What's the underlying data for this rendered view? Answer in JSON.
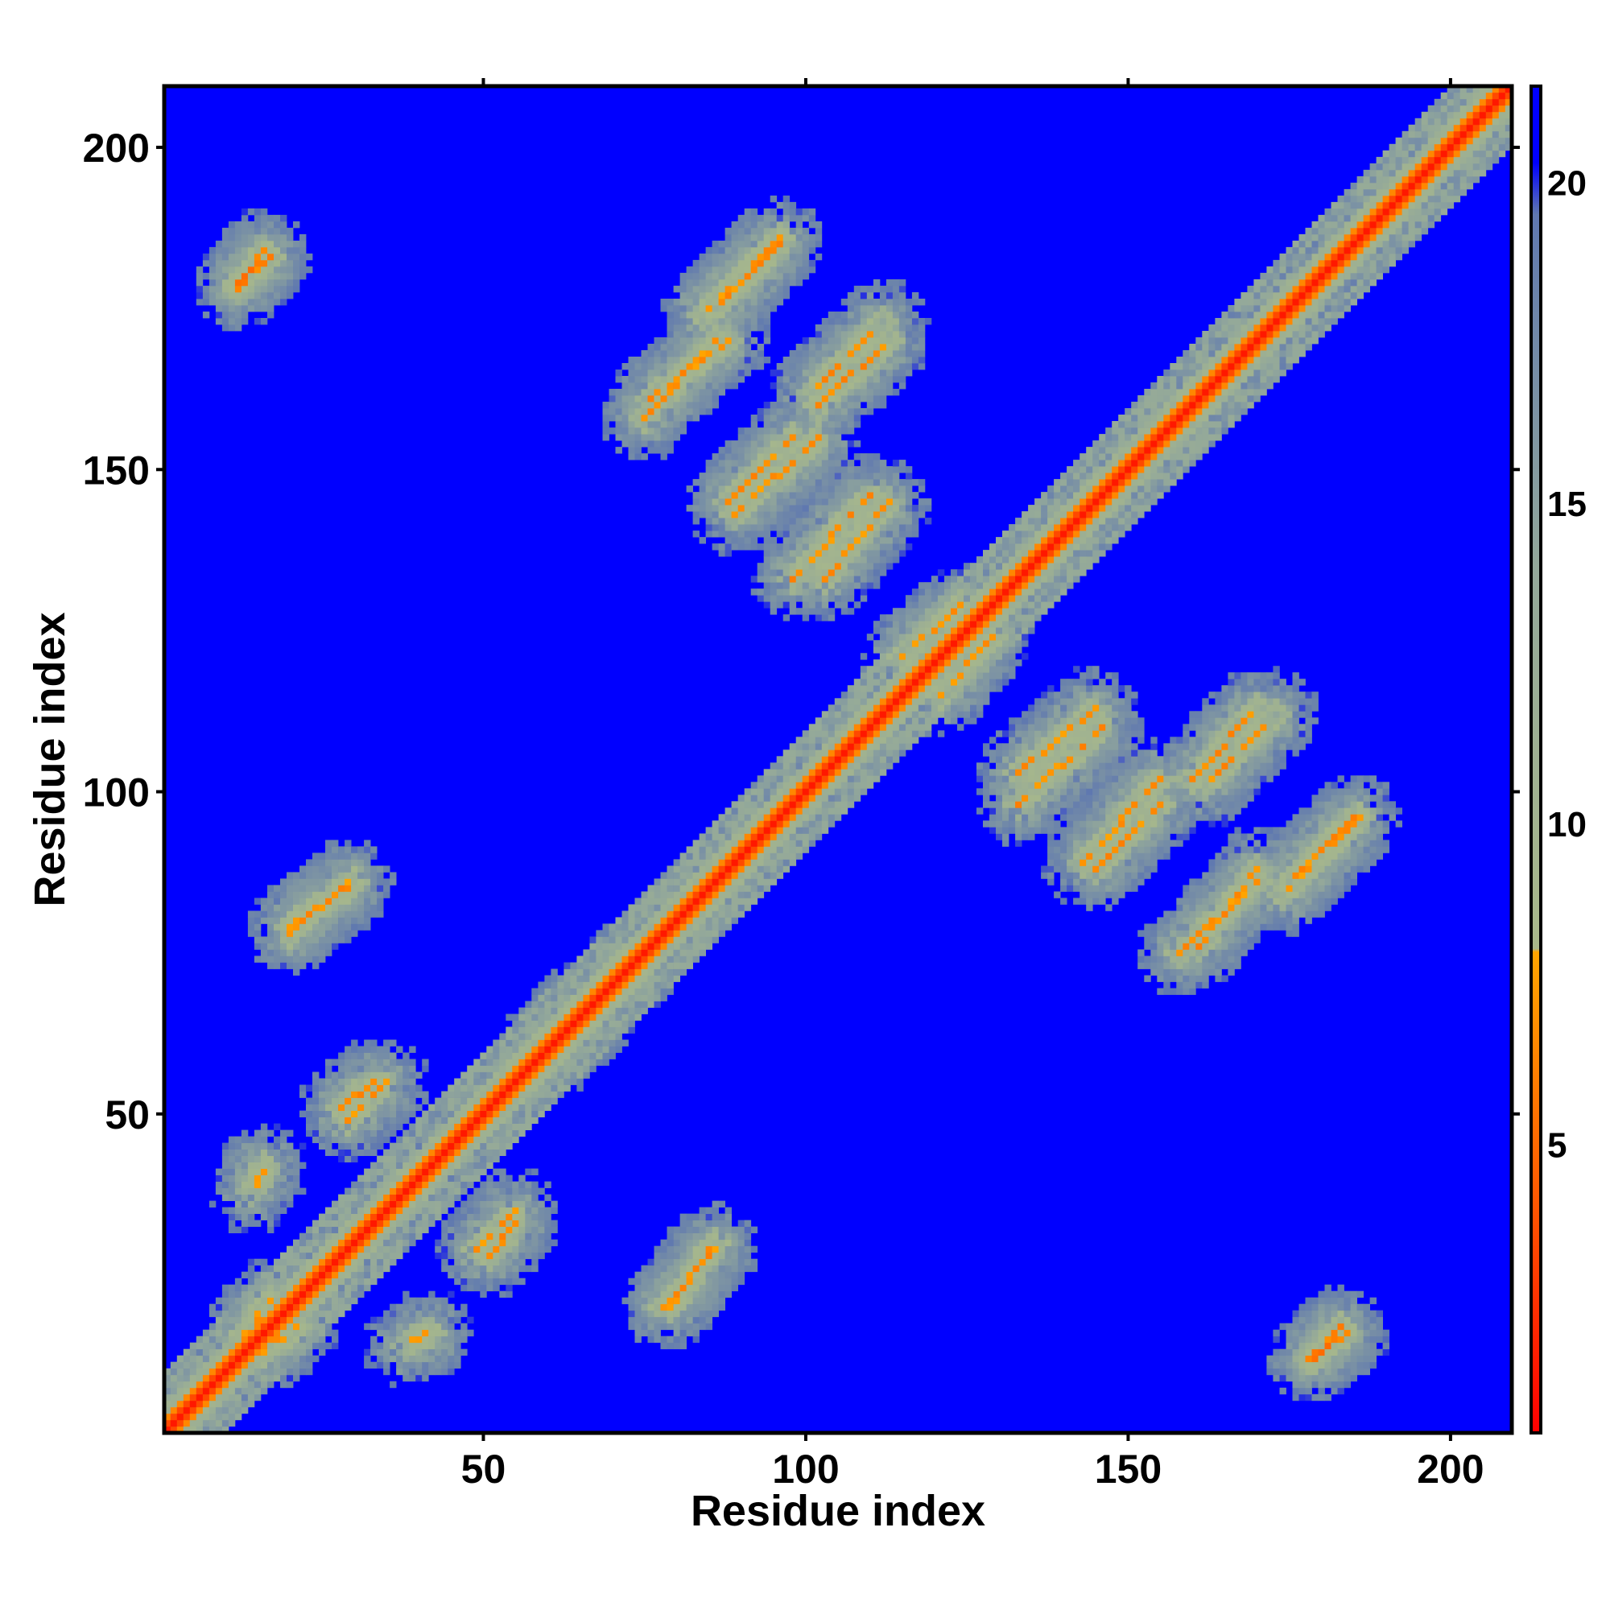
{
  "chart_data": {
    "type": "heatmap",
    "title": "",
    "xlabel": "Residue index",
    "ylabel": "Residue index",
    "xlim": [
      1,
      209
    ],
    "ylim": [
      1,
      209
    ],
    "xticks": [
      50,
      100,
      150,
      200
    ],
    "yticks": [
      50,
      100,
      150,
      200
    ],
    "grid": false,
    "legend": "colorbar-right",
    "colorbar": {
      "range": [
        0.5,
        21.5
      ],
      "ticks": [
        5,
        10,
        15,
        20
      ],
      "color_stops": [
        {
          "value": 0.5,
          "color": "#ff0000"
        },
        {
          "value": 4.0,
          "color": "#ff5500"
        },
        {
          "value": 8.0,
          "color": "#ffa500"
        },
        {
          "value": 8.05,
          "color": "#a9b98a"
        },
        {
          "value": 14.0,
          "color": "#93a89a"
        },
        {
          "value": 19.5,
          "color": "#5f78b0"
        },
        {
          "value": 20.3,
          "color": "#0000ff"
        },
        {
          "value": 21.5,
          "color": "#0000ff"
        }
      ]
    },
    "values_description_free": null,
    "background_value": 21,
    "matrix_symmetric": true,
    "contact_bands": [
      {
        "residues_a": [
          1,
          209
        ],
        "residues_b": [
          1,
          209
        ],
        "offset": 0,
        "level": 2
      },
      {
        "residues_a": [
          86,
          96
        ],
        "residues_b": [
          175,
          185
        ],
        "level": 6
      },
      {
        "residues_a": [
          102,
          113
        ],
        "residues_b": [
          160,
          170
        ],
        "level": 6
      },
      {
        "residues_a": [
          75,
          86
        ],
        "residues_b": [
          158,
          170
        ],
        "level": 6
      },
      {
        "residues_a": [
          89,
          102
        ],
        "residues_b": [
          143,
          155
        ],
        "level": 6
      },
      {
        "residues_a": [
          103,
          113
        ],
        "residues_b": [
          133,
          145
        ],
        "level": 6
      },
      {
        "residues_a": [
          79,
          86
        ],
        "residues_b": [
          20,
          30
        ],
        "level": 6
      },
      {
        "residues_a": [
          62,
          74
        ],
        "residues_b": [
          60,
          73
        ],
        "level": 6
      },
      {
        "residues_a": [
          20,
          29
        ],
        "residues_b": [
          78,
          86
        ],
        "level": 6
      },
      {
        "residues_a": [
          12,
          17
        ],
        "residues_b": [
          179,
          183
        ],
        "level": 5
      },
      {
        "residues_a": [
          28,
          33
        ],
        "residues_b": [
          51,
          55
        ],
        "level": 6
      },
      {
        "residues_a": [
          49,
          55
        ],
        "residues_b": [
          29,
          35
        ],
        "level": 6
      },
      {
        "residues_a": [
          16,
          21
        ],
        "residues_b": [
          13,
          17
        ],
        "level": 6
      },
      {
        "residues_a": [
          38,
          42
        ],
        "residues_b": [
          14,
          16
        ],
        "level": 6
      },
      {
        "residues_a": [
          178,
          184
        ],
        "residues_b": [
          12,
          16
        ],
        "level": 5
      },
      {
        "residues_a": [
          133,
          146
        ],
        "residues_b": [
          98,
          110
        ],
        "level": 6
      },
      {
        "residues_a": [
          162,
          173
        ],
        "residues_b": [
          101,
          112
        ],
        "level": 6
      },
      {
        "residues_a": [
          145,
          155
        ],
        "residues_b": [
          88,
          98
        ],
        "level": 6
      },
      {
        "residues_a": [
          174,
          186
        ],
        "residues_b": [
          84,
          96
        ],
        "level": 6
      },
      {
        "residues_a": [
          161,
          170
        ],
        "residues_b": [
          76,
          88
        ],
        "level": 6
      },
      {
        "residues_a": [
          121,
          129
        ],
        "residues_b": [
          115,
          124
        ],
        "level": 6
      }
    ]
  }
}
